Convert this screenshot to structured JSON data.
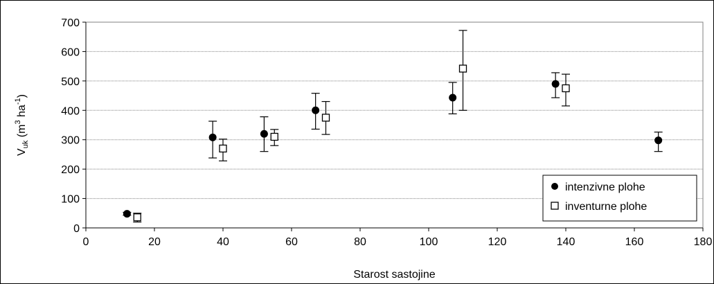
{
  "chart_data": {
    "type": "scatter",
    "xlabel": "Starost sastojine",
    "ylabel": {
      "base": "V",
      "sub": "uk",
      "open": " (m",
      "sup1": "3",
      "mid": " ha",
      "sup2": "-1",
      "close": ")"
    },
    "xlim": [
      0,
      180
    ],
    "ylim": [
      0,
      700
    ],
    "x_ticks": [
      0,
      20,
      40,
      60,
      80,
      100,
      120,
      140,
      160,
      180
    ],
    "y_ticks": [
      0,
      100,
      200,
      300,
      400,
      500,
      600,
      700
    ],
    "grid": "horizontal",
    "legend_position": "bottom-right",
    "series": [
      {
        "name": "intenzivne plohe",
        "marker": "filled-circle",
        "color": "#000000",
        "points": [
          {
            "x": 12,
            "y": 48,
            "low": 43,
            "high": 53
          },
          {
            "x": 37,
            "y": 308,
            "low": 238,
            "high": 363
          },
          {
            "x": 52,
            "y": 320,
            "low": 260,
            "high": 378
          },
          {
            "x": 67,
            "y": 400,
            "low": 336,
            "high": 458
          },
          {
            "x": 107,
            "y": 443,
            "low": 388,
            "high": 495
          },
          {
            "x": 137,
            "y": 490,
            "low": 443,
            "high": 528
          },
          {
            "x": 167,
            "y": 298,
            "low": 260,
            "high": 326
          }
        ]
      },
      {
        "name": "inventurne plohe",
        "marker": "open-square",
        "color": "#000000",
        "points": [
          {
            "x": 15,
            "y": 36,
            "low": 20,
            "high": 50
          },
          {
            "x": 40,
            "y": 270,
            "low": 228,
            "high": 302
          },
          {
            "x": 55,
            "y": 310,
            "low": 280,
            "high": 335
          },
          {
            "x": 70,
            "y": 375,
            "low": 318,
            "high": 430
          },
          {
            "x": 110,
            "y": 542,
            "low": 400,
            "high": 672
          },
          {
            "x": 140,
            "y": 475,
            "low": 415,
            "high": 523
          }
        ]
      }
    ]
  }
}
